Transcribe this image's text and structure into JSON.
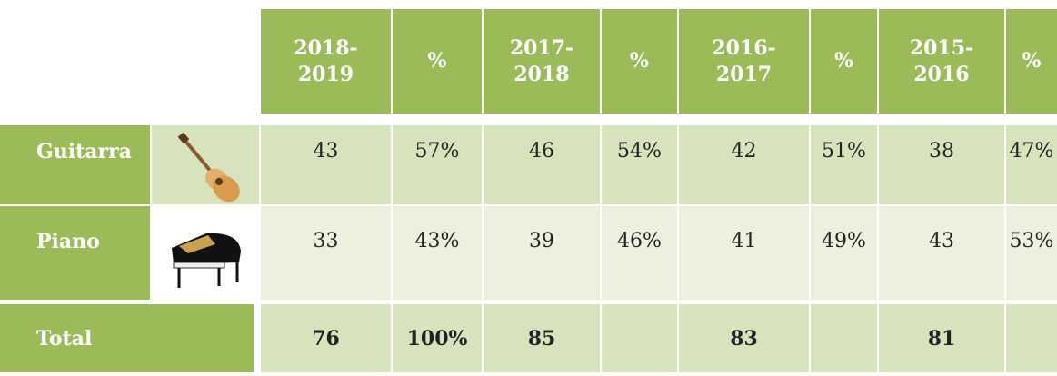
{
  "table": {
    "header": [
      "2018-2019",
      "%",
      "2017-2018",
      "%",
      "2016-2017",
      "%",
      "2015-2016",
      "%"
    ],
    "rows": [
      {
        "label": "Guitarra",
        "cells": [
          "43",
          "57%",
          "46",
          "54%",
          "42",
          "51%",
          "38",
          "47%"
        ]
      },
      {
        "label": "Piano",
        "cells": [
          "33",
          "43%",
          "39",
          "46%",
          "41",
          "49%",
          "43",
          "53%"
        ]
      }
    ],
    "total": {
      "label": "Total",
      "cells": [
        "76",
        "100%",
        "85",
        null,
        "83",
        null,
        "81",
        null
      ]
    }
  }
}
